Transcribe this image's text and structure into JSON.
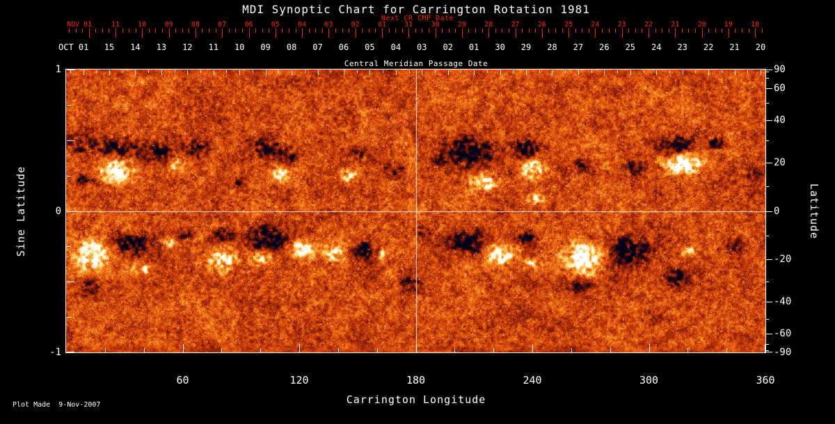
{
  "title": "MDI Synoptic Chart for Carrington Rotation 1981",
  "footer": {
    "plot_made": "Plot Made  9-Nov-2007"
  },
  "colors": {
    "background": "#000000",
    "axis_text": "#ffffff",
    "next_cr_axis": "#ff2600",
    "frame": "#ffffff",
    "crosshair": "#ffffff"
  },
  "top_axes": {
    "next_cr": {
      "title": "Next CR CMP Date",
      "month_label": "NOV 01",
      "days": [
        "11",
        "10",
        "09",
        "08",
        "07",
        "06",
        "05",
        "04",
        "03",
        "02",
        "01",
        "31",
        "30",
        "29",
        "28",
        "27",
        "26",
        "25",
        "24",
        "23",
        "22",
        "21",
        "20",
        "19",
        "18"
      ]
    },
    "current_cr": {
      "title": "Central Meridian Passage Date",
      "month_label": "OCT 01",
      "days": [
        "15",
        "14",
        "13",
        "12",
        "11",
        "10",
        "09",
        "08",
        "07",
        "06",
        "05",
        "04",
        "03",
        "02",
        "01",
        "30",
        "29",
        "28",
        "27",
        "26",
        "25",
        "24",
        "23",
        "22",
        "21",
        "20"
      ]
    }
  },
  "axes": {
    "left": {
      "label": "Sine Latitude",
      "ticks": [
        "1",
        "0",
        "-1"
      ]
    },
    "right": {
      "label": "Latitude",
      "ticks": [
        "90",
        "60",
        "40",
        "20",
        "0",
        "-20",
        "-40",
        "-60",
        "-90"
      ]
    },
    "bottom": {
      "label": "Carrington Longitude",
      "ticks": [
        "60",
        "120",
        "180",
        "240",
        "300",
        "360"
      ]
    }
  },
  "chart_data": {
    "type": "heatmap",
    "title": "MDI Synoptic Chart for Carrington Rotation 1981",
    "x": {
      "label": "Carrington Longitude",
      "min": 0,
      "max": 360,
      "major_ticks": [
        60,
        120,
        180,
        240,
        300,
        360
      ],
      "minor_tick_step": 20
    },
    "y_left": {
      "label": "Sine Latitude",
      "min": -1,
      "max": 1,
      "labeled_ticks": [
        1,
        0,
        -1
      ]
    },
    "y_right": {
      "label": "Latitude",
      "labeled_ticks": [
        90,
        60,
        40,
        20,
        0,
        -20,
        -40,
        -60,
        -90
      ],
      "tick_step_deg": 10
    },
    "reference_lines": {
      "longitude": 180,
      "sine_latitude": 0
    },
    "colormap": [
      [
        -1.3,
        2,
        2,
        22
      ],
      [
        -0.8,
        12,
        6,
        30
      ],
      [
        -0.45,
        74,
        12,
        10
      ],
      [
        -0.15,
        164,
        38,
        8
      ],
      [
        0,
        206,
        62,
        10
      ],
      [
        0.2,
        236,
        96,
        16
      ],
      [
        0.45,
        250,
        160,
        42
      ],
      [
        0.7,
        255,
        220,
        112
      ],
      [
        0.95,
        255,
        250,
        232
      ],
      [
        1.3,
        255,
        255,
        255
      ]
    ],
    "active_regions": [
      {
        "lon": 8,
        "slat": 0.48,
        "rlon": 9,
        "rslat": 0.09,
        "amp": -0.7
      },
      {
        "lon": 9,
        "slat": 0.22,
        "rlon": 5,
        "rslat": 0.05,
        "amp": -0.8
      },
      {
        "lon": 26,
        "slat": 0.29,
        "rlon": 8,
        "rslat": 0.09,
        "amp": 1.5
      },
      {
        "lon": 27,
        "slat": 0.44,
        "rlon": 9,
        "rslat": 0.07,
        "amp": -1.2
      },
      {
        "lon": 46,
        "slat": 0.42,
        "rlon": 9,
        "rslat": 0.07,
        "amp": -1.0
      },
      {
        "lon": 57,
        "slat": 0.33,
        "rlon": 4,
        "rslat": 0.05,
        "amp": 0.9
      },
      {
        "lon": 67,
        "slat": 0.45,
        "rlon": 7,
        "rslat": 0.07,
        "amp": -0.8
      },
      {
        "lon": 89,
        "slat": 0.2,
        "rlon": 4,
        "rslat": 0.04,
        "amp": -0.8
      },
      {
        "lon": 103,
        "slat": 0.45,
        "rlon": 8,
        "rslat": 0.07,
        "amp": -1.1
      },
      {
        "lon": 114,
        "slat": 0.38,
        "rlon": 5,
        "rslat": 0.05,
        "amp": -0.9
      },
      {
        "lon": 110,
        "slat": 0.26,
        "rlon": 5,
        "rslat": 0.05,
        "amp": 1.0
      },
      {
        "lon": 146,
        "slat": 0.25,
        "rlon": 5,
        "rslat": 0.05,
        "amp": 1.0
      },
      {
        "lon": 150,
        "slat": 0.4,
        "rlon": 5,
        "rslat": 0.05,
        "amp": -0.7
      },
      {
        "lon": 167,
        "slat": 0.28,
        "rlon": 5,
        "rslat": 0.05,
        "amp": -0.8
      },
      {
        "lon": 193,
        "slat": 0.37,
        "rlon": 5,
        "rslat": 0.06,
        "amp": -0.9
      },
      {
        "lon": 208,
        "slat": 0.42,
        "rlon": 11,
        "rslat": 0.1,
        "amp": -1.5
      },
      {
        "lon": 215,
        "slat": 0.21,
        "rlon": 7,
        "rslat": 0.06,
        "amp": 1.3
      },
      {
        "lon": 236,
        "slat": 0.44,
        "rlon": 7,
        "rslat": 0.07,
        "amp": -1.2
      },
      {
        "lon": 240,
        "slat": 0.3,
        "rlon": 6,
        "rslat": 0.06,
        "amp": 1.3
      },
      {
        "lon": 241,
        "slat": 0.09,
        "rlon": 5,
        "rslat": 0.05,
        "amp": 0.8
      },
      {
        "lon": 266,
        "slat": 0.32,
        "rlon": 4,
        "rslat": 0.04,
        "amp": -0.8
      },
      {
        "lon": 292,
        "slat": 0.31,
        "rlon": 5,
        "rslat": 0.05,
        "amp": -0.8
      },
      {
        "lon": 314,
        "slat": 0.46,
        "rlon": 8,
        "rslat": 0.07,
        "amp": -1.3
      },
      {
        "lon": 317,
        "slat": 0.34,
        "rlon": 10,
        "rslat": 0.08,
        "amp": 1.5
      },
      {
        "lon": 334,
        "slat": 0.48,
        "rlon": 5,
        "rslat": 0.05,
        "amp": -0.9
      },
      {
        "lon": 354,
        "slat": 0.26,
        "rlon": 4,
        "rslat": 0.05,
        "amp": -0.6
      },
      {
        "lon": 14,
        "slat": -0.3,
        "rlon": 9,
        "rslat": 0.1,
        "amp": 1.6
      },
      {
        "lon": 32,
        "slat": -0.24,
        "rlon": 9,
        "rslat": 0.08,
        "amp": -1.3
      },
      {
        "lon": 38,
        "slat": -0.41,
        "rlon": 5,
        "rslat": 0.05,
        "amp": 1.0
      },
      {
        "lon": 12,
        "slat": -0.54,
        "rlon": 5,
        "rslat": 0.06,
        "amp": -0.8
      },
      {
        "lon": 53,
        "slat": -0.22,
        "rlon": 4,
        "rslat": 0.04,
        "amp": 0.8
      },
      {
        "lon": 61,
        "slat": -0.17,
        "rlon": 4,
        "rslat": 0.04,
        "amp": -0.7
      },
      {
        "lon": 80,
        "slat": -0.34,
        "rlon": 8,
        "rslat": 0.08,
        "amp": 1.3
      },
      {
        "lon": 81,
        "slat": -0.17,
        "rlon": 6,
        "rslat": 0.05,
        "amp": -1.0
      },
      {
        "lon": 104,
        "slat": -0.19,
        "rlon": 9,
        "rslat": 0.08,
        "amp": -1.5
      },
      {
        "lon": 101,
        "slat": -0.33,
        "rlon": 5,
        "rslat": 0.05,
        "amp": 1.1
      },
      {
        "lon": 122,
        "slat": -0.27,
        "rlon": 6,
        "rslat": 0.06,
        "amp": 1.4
      },
      {
        "lon": 138,
        "slat": -0.3,
        "rlon": 5,
        "rslat": 0.06,
        "amp": 1.2
      },
      {
        "lon": 154,
        "slat": -0.28,
        "rlon": 6,
        "rslat": 0.06,
        "amp": -1.2
      },
      {
        "lon": 163,
        "slat": -0.31,
        "rlon": 3,
        "rslat": 0.04,
        "amp": 0.8
      },
      {
        "lon": 177,
        "slat": -0.52,
        "rlon": 6,
        "rslat": 0.06,
        "amp": -0.7
      },
      {
        "lon": 183,
        "slat": -0.14,
        "rlon": 4,
        "rslat": 0.04,
        "amp": -0.6
      },
      {
        "lon": 206,
        "slat": -0.22,
        "rlon": 9,
        "rslat": 0.08,
        "amp": -1.4
      },
      {
        "lon": 224,
        "slat": -0.3,
        "rlon": 7,
        "rslat": 0.07,
        "amp": 1.4
      },
      {
        "lon": 237,
        "slat": -0.19,
        "rlon": 5,
        "rslat": 0.05,
        "amp": -1.0
      },
      {
        "lon": 239,
        "slat": -0.37,
        "rlon": 4,
        "rslat": 0.04,
        "amp": 0.9
      },
      {
        "lon": 266,
        "slat": -0.33,
        "rlon": 10,
        "rslat": 0.1,
        "amp": 1.5
      },
      {
        "lon": 290,
        "slat": -0.28,
        "rlon": 10,
        "rslat": 0.1,
        "amp": -1.5
      },
      {
        "lon": 264,
        "slat": -0.53,
        "rlon": 6,
        "rslat": 0.05,
        "amp": -0.8
      },
      {
        "lon": 314,
        "slat": -0.47,
        "rlon": 6,
        "rslat": 0.07,
        "amp": -0.9
      },
      {
        "lon": 321,
        "slat": -0.28,
        "rlon": 4,
        "rslat": 0.04,
        "amp": 0.8
      },
      {
        "lon": 344,
        "slat": -0.25,
        "rlon": 5,
        "rslat": 0.05,
        "amp": -0.6
      }
    ]
  }
}
